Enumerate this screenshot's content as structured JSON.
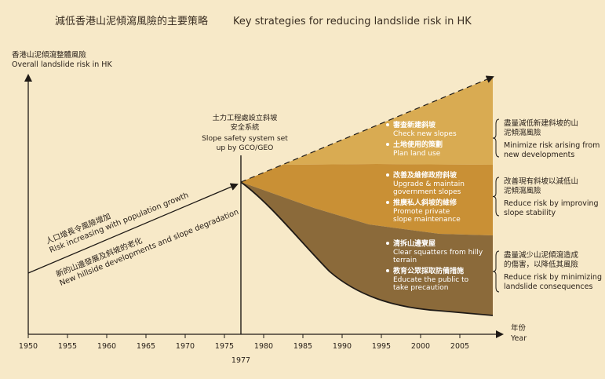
{
  "title": {
    "zh": "減低香港山泥傾瀉風險的主要策略",
    "en": "Key strategies for reducing landslide risk in HK"
  },
  "y_axis": {
    "label_zh": "香港山泥傾瀉整體風險",
    "label_en": "Overall landslide risk in HK"
  },
  "x_axis": {
    "label_zh": "年份",
    "label_en": "Year",
    "ticks": [
      "1950",
      "1955",
      "1960",
      "1965",
      "1970",
      "1975",
      "1980",
      "1985",
      "1990",
      "1995",
      "2000",
      "2005"
    ],
    "marker": "1977"
  },
  "milestone": {
    "line1": "土力工程處設立斜坡",
    "line2": "安全系統",
    "line3": "Slope safety system set",
    "line4": "up by GCO/GEO"
  },
  "trend_upper": {
    "zh": "人口增長令風險增加",
    "en": "Risk increasing with population growth"
  },
  "trend_lower": {
    "zh": "新的山邊發展及斜坡的老化",
    "en": "New hillside developments and slope degradation"
  },
  "bands": [
    {
      "color": "#d9ab52",
      "items": [
        {
          "zh": "審查新建斜坡",
          "en": [
            "Check new slopes"
          ]
        },
        {
          "zh": "土地使用的策劃",
          "en": [
            "Plan land use"
          ]
        }
      ],
      "side_zh": [
        "盡量減低新建斜坡的山",
        "泥傾瀉風險"
      ],
      "side_en": [
        "Minimize risk arising from",
        "new developments"
      ]
    },
    {
      "color": "#c99035",
      "items": [
        {
          "zh": "改善及維修政府斜坡",
          "en": [
            "Upgrade & maintain",
            "government slopes"
          ]
        },
        {
          "zh": "推廣私人斜坡的維修",
          "en": [
            "Promote private",
            "slope maintenance"
          ]
        }
      ],
      "side_zh": [
        "改善現有斜坡以減低山",
        "泥傾瀉風險"
      ],
      "side_en": [
        "Reduce risk by improving",
        "slope stability"
      ]
    },
    {
      "color": "#8b6a3a",
      "items": [
        {
          "zh": "清拆山邊寮屋",
          "en": [
            "Clear squatters from hilly",
            "terrain"
          ]
        },
        {
          "zh": "教育公眾採取防備措施",
          "en": [
            "Educate the public to",
            "take precaution"
          ]
        }
      ],
      "side_zh": [
        "盡量減少山泥傾瀉造成",
        "的傷害，以降低其風險"
      ],
      "side_en": [
        "Reduce risk by minimizing",
        "landslide consequences"
      ]
    }
  ]
}
